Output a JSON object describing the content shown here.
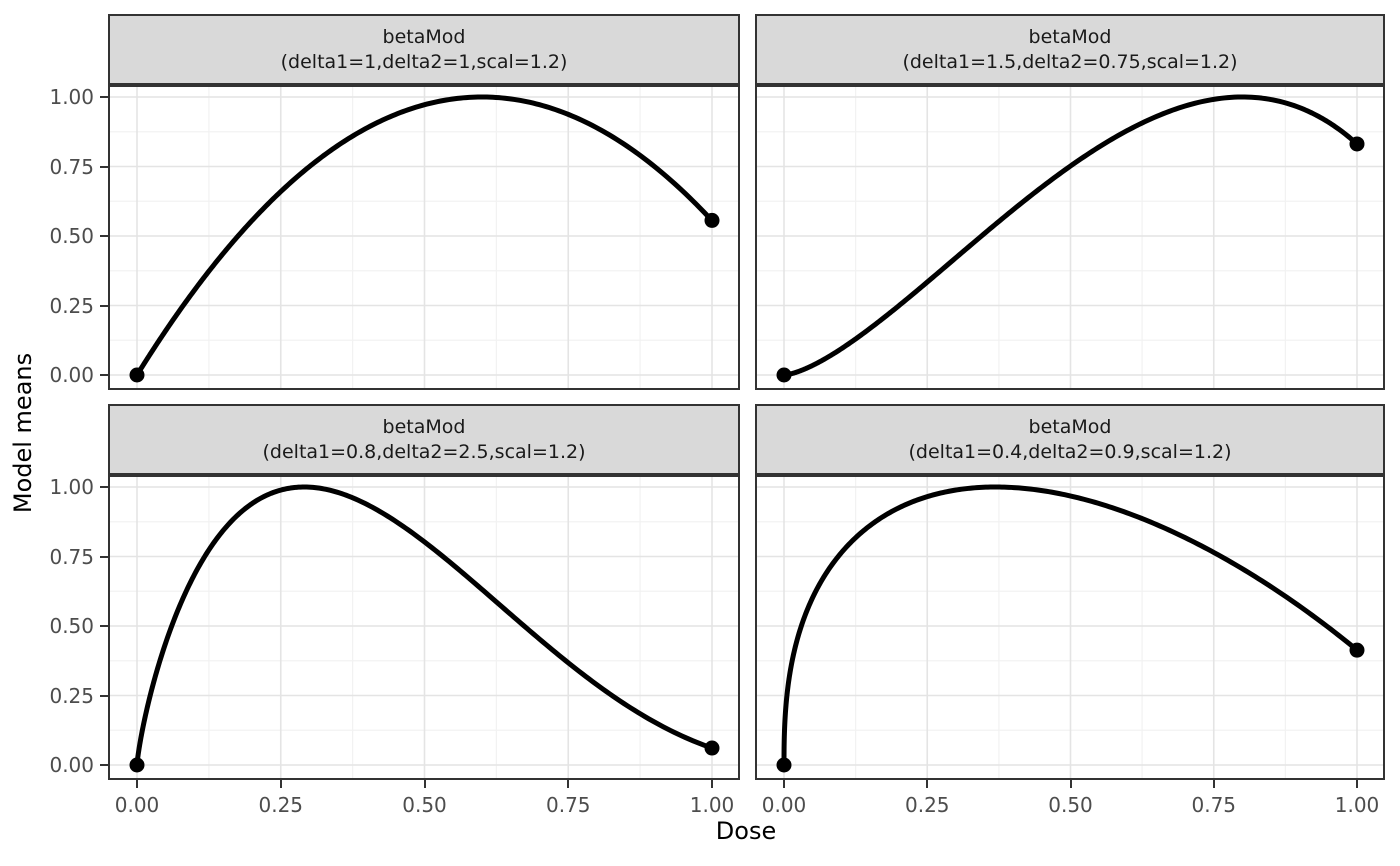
{
  "chart_data": {
    "type": "line",
    "title": "",
    "xlabel": "Dose",
    "ylabel": "Model means",
    "xlim": [
      0,
      1
    ],
    "ylim": [
      0,
      1
    ],
    "grid": "major and minor gridlines, white panel background, black panel border",
    "legend": "none",
    "x_tick_labels": [
      "0.00",
      "0.25",
      "0.50",
      "0.75",
      "1.00"
    ],
    "x_tick_values": [
      0,
      0.25,
      0.5,
      0.75,
      1
    ],
    "y_tick_labels": [
      "1.00",
      "0.75",
      "0.50",
      "0.25",
      "0.00"
    ],
    "y_tick_values": [
      1,
      0.75,
      0.5,
      0.25,
      0
    ],
    "sample_x": [
      0,
      0.05,
      0.1,
      0.15,
      0.2,
      0.25,
      0.3,
      0.35,
      0.4,
      0.45,
      0.5,
      0.55,
      0.6,
      0.65,
      0.7,
      0.75,
      0.8,
      0.85,
      0.9,
      0.95,
      1
    ],
    "facets": [
      {
        "strip_line1": "betaMod",
        "strip_line2": "(delta1=1,delta2=1,scal=1.2)",
        "model": "betaMod",
        "params": {
          "delta1": 1,
          "delta2": 1,
          "scal": 1.2
        },
        "peak_x": 0.6,
        "endpoint_dots": [
          [
            0,
            0
          ],
          [
            1,
            0.556
          ]
        ],
        "sample_y": [
          0,
          0.16,
          0.306,
          0.438,
          0.556,
          0.66,
          0.75,
          0.826,
          0.889,
          0.938,
          0.972,
          0.993,
          1.0,
          0.993,
          0.972,
          0.938,
          0.889,
          0.826,
          0.75,
          0.66,
          0.556
        ]
      },
      {
        "strip_line1": "betaMod",
        "strip_line2": "(delta1=1.5,delta2=0.75,scal=1.2)",
        "model": "betaMod",
        "params": {
          "delta1": 1.5,
          "delta2": 0.75,
          "scal": 1.2
        },
        "peak_x": 0.8,
        "endpoint_dots": [
          [
            0,
            0
          ],
          [
            1,
            0.831
          ]
        ],
        "sample_y": [
          0,
          0.034,
          0.094,
          0.167,
          0.249,
          0.334,
          0.422,
          0.509,
          0.595,
          0.676,
          0.752,
          0.82,
          0.88,
          0.93,
          0.968,
          0.992,
          1.0,
          0.991,
          0.962,
          0.91,
          0.831
        ]
      },
      {
        "strip_line1": "betaMod",
        "strip_line2": "(delta1=0.8,delta2=2.5,scal=1.2)",
        "model": "betaMod",
        "params": {
          "delta1": 0.8,
          "delta2": 2.5,
          "scal": 1.2
        },
        "peak_x": 0.291,
        "endpoint_dots": [
          [
            0,
            0
          ],
          [
            1,
            0.061
          ]
        ],
        "sample_y": [
          0,
          0.44,
          0.686,
          0.844,
          0.94,
          0.989,
          1.0,
          0.98,
          0.937,
          0.876,
          0.802,
          0.72,
          0.632,
          0.542,
          0.453,
          0.368,
          0.288,
          0.217,
          0.154,
          0.102,
          0.061
        ]
      },
      {
        "strip_line1": "betaMod",
        "strip_line2": "(delta1=0.4,delta2=0.9,scal=1.2)",
        "model": "betaMod",
        "params": {
          "delta1": 0.4,
          "delta2": 0.9,
          "scal": 1.2
        },
        "peak_x": 0.369,
        "endpoint_dots": [
          [
            0,
            0
          ],
          [
            1,
            0.413
          ]
        ],
        "sample_y": [
          0,
          0.602,
          0.763,
          0.861,
          0.925,
          0.965,
          0.989,
          0.999,
          0.998,
          0.987,
          0.968,
          0.94,
          0.906,
          0.865,
          0.818,
          0.765,
          0.706,
          0.641,
          0.571,
          0.495,
          0.413
        ]
      }
    ]
  },
  "colors": {
    "line": "#000000",
    "point": "#000000",
    "strip_bg": "#D9D9D9",
    "panel_bg": "#FFFFFF",
    "border": "#333333",
    "grid_major": "#E4E4E4",
    "grid_minor": "#F2F2F2",
    "tick_mark": "#333333",
    "tick_label": "#4D4D4D",
    "axis_title": "#000000"
  }
}
